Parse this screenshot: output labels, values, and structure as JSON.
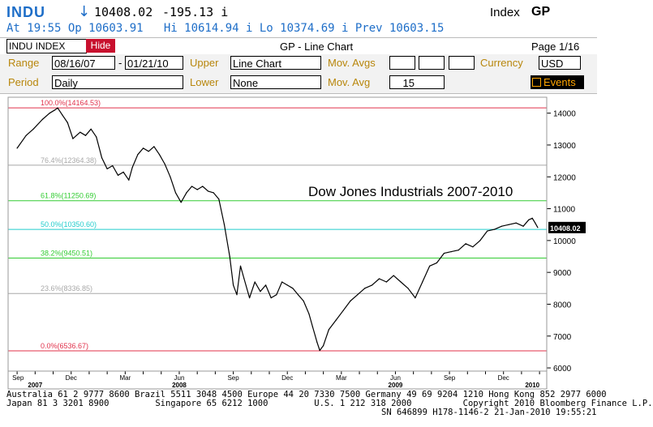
{
  "header": {
    "ticker": "INDU",
    "arrow": "↓",
    "last": "10408.02",
    "change": "-195.13 i",
    "type": "Index",
    "function": "GP",
    "line2": "At 19:55 Op 10603.91   Hi 10614.94 i Lo 10374.69 i Prev 10603.15"
  },
  "toolbar": {
    "security_name": "INDU INDEX",
    "hide_label": "Hide",
    "chart_title": "GP - Line Chart",
    "page": "Page 1/16"
  },
  "params": {
    "range_label": "Range",
    "range_start": "08/16/07",
    "range_sep": "-",
    "range_end": "01/21/10",
    "upper_label": "Upper",
    "upper_value": "Line Chart",
    "mov_avgs_label": "Mov. Avgs",
    "currency_label": "Currency",
    "currency_value": "USD",
    "period_label": "Period",
    "period_value": "Daily",
    "lower_label": "Lower",
    "lower_value": "None",
    "mov_avg_label": "Mov. Avg",
    "mov_avg_value": "15",
    "events_label": "Events"
  },
  "footer": {
    "line1": "Australia 61 2 9777 8600 Brazil 5511 3048 4500 Europe 44 20 7330 7500 Germany 49 69 9204 1210 Hong Kong 852 2977 6000",
    "line2": "Japan 81 3 3201 8900         Singapore 65 6212 1000         U.S. 1 212 318 2000          Copyright 2010 Bloomberg Finance L.P.",
    "line3": "SN 646899 H178-1146-2 21-Jan-2010 19:55:21"
  },
  "colors": {
    "bloomberg_blue": "#1e6ec8",
    "label_gold": "#b8860b",
    "hide_red": "#c8102e",
    "fib_100": "#e0304a",
    "fib_76": "#a8a8a8",
    "fib_61": "#33cc33",
    "fib_50": "#22cccc",
    "fib_38": "#33cc33",
    "fib_23": "#a8a8a8",
    "fib_0": "#e0304a"
  },
  "chart_data": {
    "type": "line",
    "annotation": "Dow Jones Industrials 2007-2010",
    "ylim": [
      5900,
      14500
    ],
    "y_ticks": [
      6000,
      7000,
      8000,
      9000,
      10000,
      11000,
      12000,
      13000,
      14000
    ],
    "x_ticks": [
      {
        "label": "Sep",
        "t": 0.55
      },
      {
        "label": "Dec",
        "t": 3.5
      },
      {
        "label": "Mar",
        "t": 6.5
      },
      {
        "label": "Jun",
        "t": 9.5
      },
      {
        "label": "Sep",
        "t": 12.5
      },
      {
        "label": "Dec",
        "t": 15.5
      },
      {
        "label": "Mar",
        "t": 18.5
      },
      {
        "label": "Jun",
        "t": 21.5
      },
      {
        "label": "Sep",
        "t": 24.5
      },
      {
        "label": "Dec",
        "t": 27.5
      }
    ],
    "year_ticks": [
      {
        "label": "2007",
        "t": 1.5
      },
      {
        "label": "2008",
        "t": 9.5
      },
      {
        "label": "2009",
        "t": 21.5
      },
      {
        "label": "2010",
        "t": 29.1
      }
    ],
    "x_unit": "months since Aug 2007",
    "last_value_label": "10408.02",
    "fib_levels": [
      {
        "label": "100.0%(14164.53)",
        "value": 14164.53
      },
      {
        "label": "76.4%(12364.38)",
        "value": 12364.38
      },
      {
        "label": "61.8%(11250.69)",
        "value": 11250.69
      },
      {
        "label": "50.0%(10350.60)",
        "value": 10350.6
      },
      {
        "label": "38.2%(9450.51)",
        "value": 9450.51
      },
      {
        "label": "23.6%(8336.85)",
        "value": 8336.85
      },
      {
        "label": "0.0%(6536.67)",
        "value": 6536.67
      }
    ],
    "series": [
      {
        "values": [
          [
            0.5,
            12900
          ],
          [
            1.0,
            13300
          ],
          [
            1.4,
            13500
          ],
          [
            1.9,
            13800
          ],
          [
            2.3,
            14000
          ],
          [
            2.6,
            14100
          ],
          [
            2.75,
            14164
          ],
          [
            3.0,
            13950
          ],
          [
            3.3,
            13700
          ],
          [
            3.6,
            13200
          ],
          [
            4.0,
            13400
          ],
          [
            4.3,
            13300
          ],
          [
            4.6,
            13500
          ],
          [
            4.9,
            13250
          ],
          [
            5.2,
            12600
          ],
          [
            5.5,
            12250
          ],
          [
            5.8,
            12350
          ],
          [
            6.1,
            12050
          ],
          [
            6.4,
            12150
          ],
          [
            6.7,
            11900
          ],
          [
            6.9,
            12300
          ],
          [
            7.2,
            12700
          ],
          [
            7.5,
            12900
          ],
          [
            7.8,
            12800
          ],
          [
            8.1,
            12950
          ],
          [
            8.4,
            12700
          ],
          [
            8.7,
            12400
          ],
          [
            9.0,
            12000
          ],
          [
            9.3,
            11500
          ],
          [
            9.6,
            11200
          ],
          [
            9.9,
            11500
          ],
          [
            10.2,
            11700
          ],
          [
            10.5,
            11600
          ],
          [
            10.8,
            11700
          ],
          [
            11.1,
            11550
          ],
          [
            11.4,
            11500
          ],
          [
            11.7,
            11300
          ],
          [
            12.0,
            10500
          ],
          [
            12.3,
            9500
          ],
          [
            12.5,
            8600
          ],
          [
            12.7,
            8300
          ],
          [
            12.9,
            9200
          ],
          [
            13.1,
            8800
          ],
          [
            13.4,
            8200
          ],
          [
            13.7,
            8700
          ],
          [
            14.0,
            8400
          ],
          [
            14.3,
            8600
          ],
          [
            14.6,
            8200
          ],
          [
            14.9,
            8300
          ],
          [
            15.2,
            8700
          ],
          [
            15.5,
            8600
          ],
          [
            15.8,
            8500
          ],
          [
            16.1,
            8300
          ],
          [
            16.4,
            8100
          ],
          [
            16.7,
            7700
          ],
          [
            16.9,
            7300
          ],
          [
            17.15,
            6800
          ],
          [
            17.3,
            6550
          ],
          [
            17.5,
            6700
          ],
          [
            17.8,
            7200
          ],
          [
            18.2,
            7500
          ],
          [
            18.6,
            7800
          ],
          [
            19.0,
            8100
          ],
          [
            19.4,
            8300
          ],
          [
            19.8,
            8500
          ],
          [
            20.2,
            8600
          ],
          [
            20.6,
            8800
          ],
          [
            21.0,
            8700
          ],
          [
            21.4,
            8900
          ],
          [
            21.8,
            8700
          ],
          [
            22.2,
            8500
          ],
          [
            22.6,
            8200
          ],
          [
            23.0,
            8700
          ],
          [
            23.4,
            9200
          ],
          [
            23.8,
            9300
          ],
          [
            24.2,
            9600
          ],
          [
            24.6,
            9650
          ],
          [
            25.0,
            9700
          ],
          [
            25.4,
            9900
          ],
          [
            25.8,
            9800
          ],
          [
            26.2,
            10000
          ],
          [
            26.6,
            10300
          ],
          [
            27.0,
            10350
          ],
          [
            27.4,
            10450
          ],
          [
            27.8,
            10500
          ],
          [
            28.2,
            10550
          ],
          [
            28.6,
            10450
          ],
          [
            28.9,
            10650
          ],
          [
            29.1,
            10700
          ],
          [
            29.25,
            10560
          ],
          [
            29.4,
            10408
          ]
        ]
      }
    ]
  }
}
